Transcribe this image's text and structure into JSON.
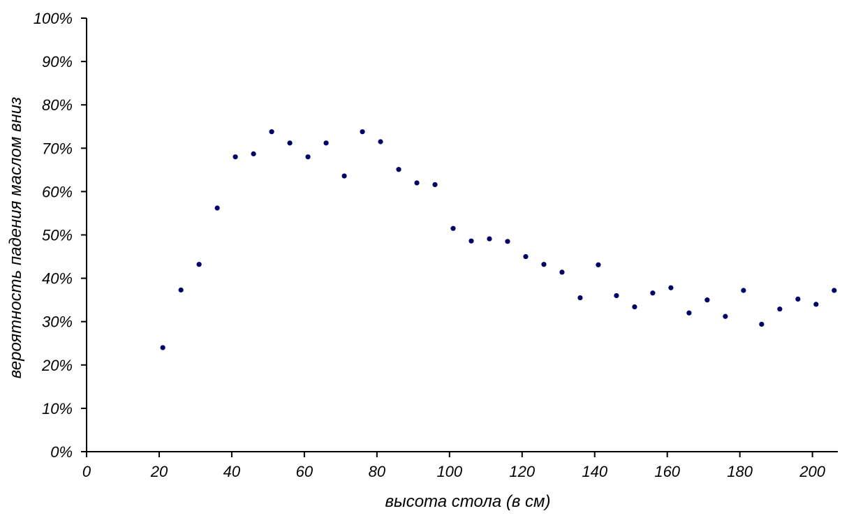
{
  "chart_data": {
    "type": "scatter",
    "title": "",
    "xlabel": "высота стола (в см)",
    "ylabel": "вероятность падения маслом вниз",
    "xlim": [
      0,
      207
    ],
    "ylim": [
      0,
      100
    ],
    "x_ticks": [
      0,
      20,
      40,
      60,
      80,
      100,
      120,
      140,
      160,
      180,
      200
    ],
    "y_ticks": [
      0,
      10,
      20,
      30,
      40,
      50,
      60,
      70,
      80,
      90,
      100
    ],
    "x_tick_labels": [
      "0",
      "20",
      "40",
      "60",
      "80",
      "100",
      "120",
      "140",
      "160",
      "180",
      "200"
    ],
    "y_tick_labels": [
      "0%",
      "10%",
      "20%",
      "30%",
      "40%",
      "50%",
      "60%",
      "70%",
      "80%",
      "90%",
      "100%"
    ],
    "grid": false,
    "point_color": "#000066",
    "series": [
      {
        "x": [
          21,
          26,
          31,
          36,
          41,
          46,
          51,
          56,
          61,
          66,
          71,
          76,
          81,
          86,
          91,
          96,
          101,
          106,
          111,
          116,
          121,
          126,
          131,
          136,
          141,
          146,
          151,
          156,
          161,
          166,
          171,
          176,
          181,
          186,
          191,
          196,
          201,
          206
        ],
        "y": [
          24.0,
          37.3,
          43.2,
          56.2,
          68.0,
          68.7,
          73.8,
          71.2,
          68.0,
          71.2,
          63.6,
          73.8,
          71.5,
          65.1,
          62.0,
          61.6,
          51.5,
          48.6,
          49.1,
          48.5,
          45.0,
          43.2,
          41.4,
          35.5,
          43.1,
          36.0,
          33.4,
          36.6,
          37.8,
          32.0,
          35.0,
          31.2,
          37.2,
          29.4,
          32.9,
          35.2,
          34.0,
          37.2
        ]
      }
    ]
  }
}
